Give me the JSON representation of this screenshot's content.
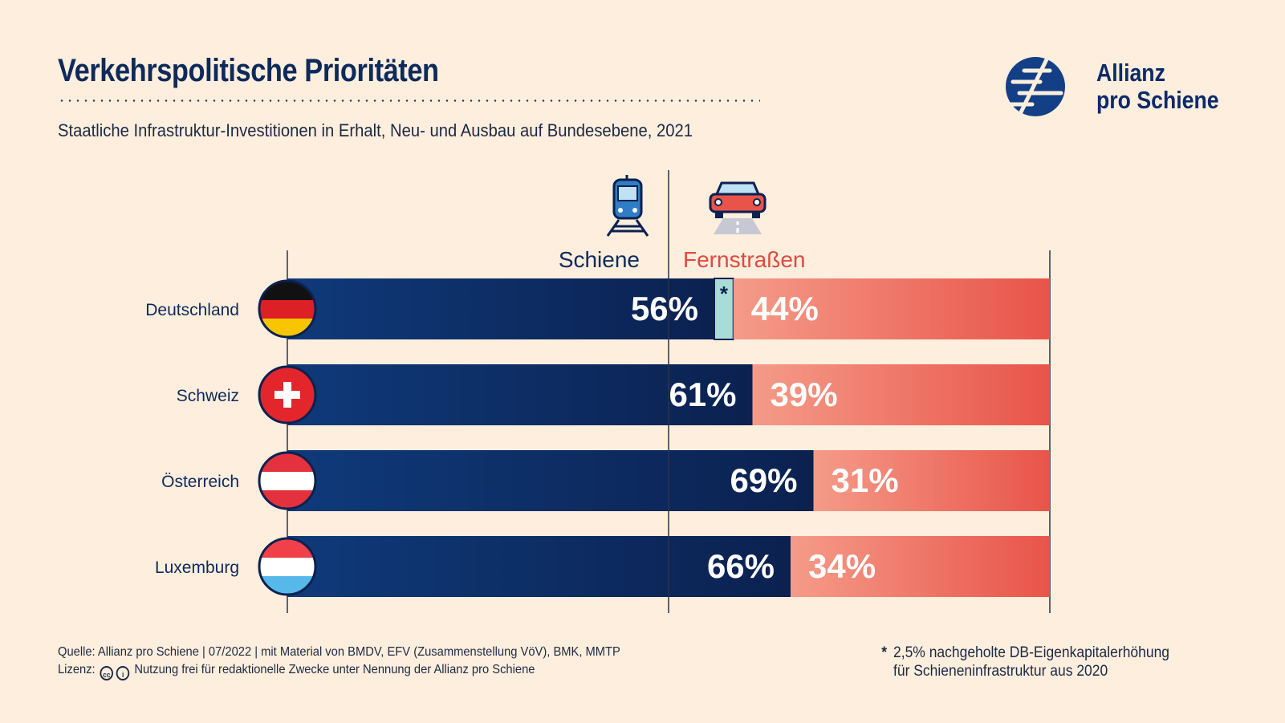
{
  "header": {
    "title": "Verkehrspolitische Prioritäten",
    "subtitle": "Staatliche Infrastruktur-Investitionen in Erhalt, Neu- und Ausbau auf Bundesebene, 2021"
  },
  "logo": {
    "line1": "Allianz",
    "line2": "pro Schiene"
  },
  "footer": {
    "source": "Quelle: Allianz pro Schiene | 07/2022 | mit Material von BMDV, EFV (Zusammenstellung VöV), BMK, MMTP",
    "license_label": "Lizenz:",
    "license_text": "Nutzung frei für redaktionelle Zwecke unter Nennung der Allianz pro Schiene",
    "cc_icon": "cc",
    "by_icon": "i"
  },
  "note": {
    "marker": "*",
    "line1": "2,5% nachgeholte DB-Eigenkapitalerhöhung",
    "line2": "für Schieneninfrastruktur aus 2020"
  },
  "colors": {
    "rail_dark": "#0c2553",
    "rail_light": "#0f3a7a",
    "road_light": "#f49a86",
    "road_dark": "#e8544a",
    "extra_teal": "#a8dcd8",
    "schiene_label": "#0e2a5a",
    "fernstrassen_label": "#e0493f"
  },
  "chart_data": {
    "type": "bar",
    "orientation": "horizontal",
    "stacked": true,
    "categories": [
      "Deutschland",
      "Schweiz",
      "Österreich",
      "Luxemburg"
    ],
    "series": [
      {
        "name": "Schiene",
        "values": [
          56,
          61,
          69,
          66
        ],
        "icon": "train-icon"
      },
      {
        "name": "Fernstraßen",
        "values": [
          44,
          39,
          31,
          34
        ],
        "icon": "car-icon"
      }
    ],
    "extra": {
      "category": "Deutschland",
      "value": 2.5,
      "marker": "*"
    },
    "value_labels": {
      "Schiene": [
        "56%",
        "61%",
        "69%",
        "66%"
      ],
      "Fernstraßen": [
        "44%",
        "39%",
        "31%",
        "34%"
      ]
    },
    "flags": [
      "flag-germany-icon",
      "flag-switzerland-icon",
      "flag-austria-icon",
      "flag-luxembourg-icon"
    ],
    "xlim": [
      0,
      100
    ],
    "reference_line": 50
  }
}
